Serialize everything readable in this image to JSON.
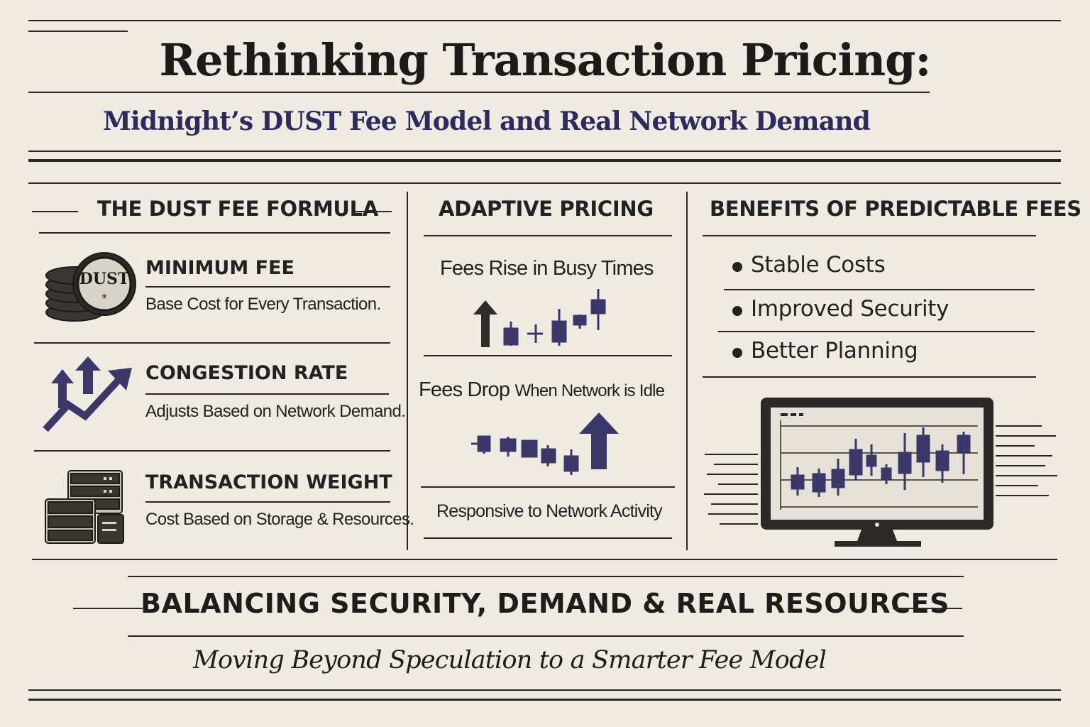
{
  "header": {
    "title": "Rethinking Transaction Pricing:",
    "subtitle": "Midnight’s DUST Fee Model and Real Network Demand"
  },
  "formula": {
    "heading": "THE DUST FEE FORMULA",
    "items": [
      {
        "title": "MINIMUM FEE",
        "desc": "Base Cost for Every Transaction.",
        "icon": "dust-coin-stack-icon",
        "coin_label": "DUST"
      },
      {
        "title": "CONGESTION RATE",
        "desc": "Adjusts Based on Network Demand.",
        "icon": "rising-arrows-icon"
      },
      {
        "title": "TRANSACTION WEIGHT",
        "desc": "Cost Based on Storage & Resources.",
        "icon": "server-stack-icon"
      }
    ]
  },
  "adaptive": {
    "heading": "ADAPTIVE PRICING",
    "rise_text": "Fees Rise in Busy Times",
    "drop_text_main": "Fees Drop",
    "drop_text_tail": "When Network is Idle",
    "footer_text": "Responsive to Network Activity"
  },
  "benefits": {
    "heading": "BENEFITS OF PREDICTABLE FEES",
    "items": [
      "Stable Costs",
      "Improved Security",
      "Better Planning"
    ]
  },
  "footer": {
    "heading": "BALANCING SECURITY, DEMAND & REAL RESOURCES",
    "subheading": "Moving Beyond Speculation to a Smarter Fee Model"
  },
  "colors": {
    "ink": "#1f1d1b",
    "accent": "#3b3768",
    "paper": "#efebe3"
  }
}
